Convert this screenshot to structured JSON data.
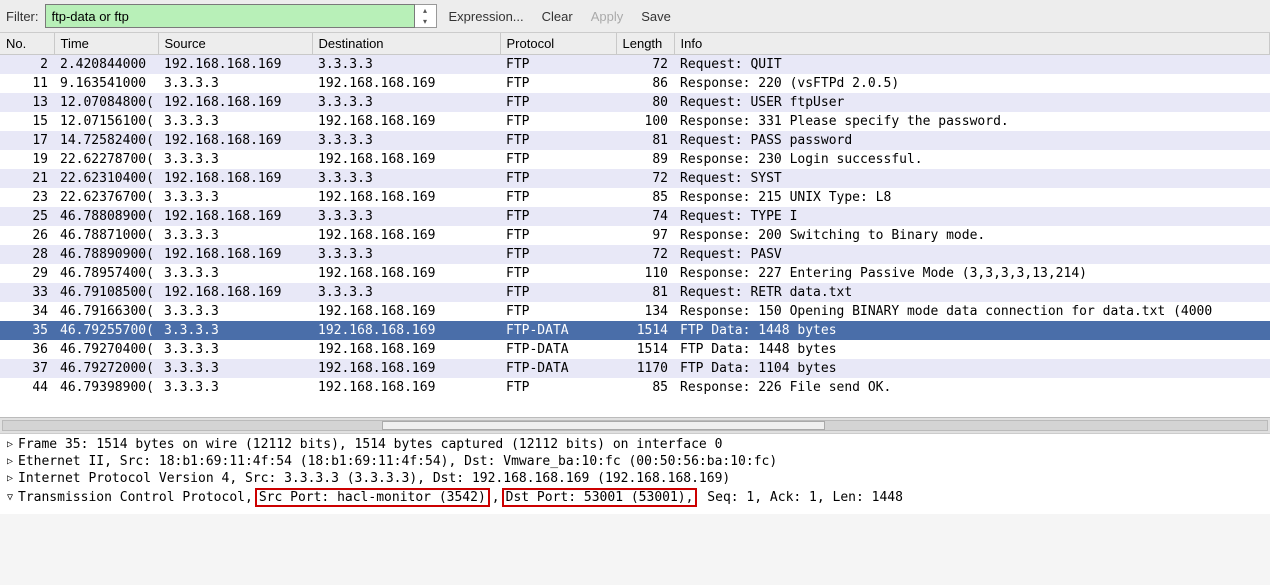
{
  "toolbar": {
    "filter_label": "Filter:",
    "filter_value": "ftp-data or ftp",
    "expression": "Expression...",
    "clear": "Clear",
    "apply": "Apply",
    "save": "Save"
  },
  "columns": {
    "no": "No.",
    "time": "Time",
    "source": "Source",
    "destination": "Destination",
    "protocol": "Protocol",
    "length": "Length",
    "info": "Info"
  },
  "colors": {
    "even_row": "#e8e8f7",
    "odd_row": "#ffffff",
    "selected_row": "#4a6ea9",
    "filter_valid_bg": "#b8f0b8",
    "highlight_border": "#c00"
  },
  "packets": [
    {
      "no": "2",
      "time": "2.420844000",
      "src": "192.168.168.169",
      "dst": "3.3.3.3",
      "proto": "FTP",
      "len": "72",
      "info": "Request: QUIT",
      "sel": false
    },
    {
      "no": "11",
      "time": "9.163541000",
      "src": "3.3.3.3",
      "dst": "192.168.168.169",
      "proto": "FTP",
      "len": "86",
      "info": "Response: 220 (vsFTPd 2.0.5)",
      "sel": false
    },
    {
      "no": "13",
      "time": "12.07084800(",
      "src": "192.168.168.169",
      "dst": "3.3.3.3",
      "proto": "FTP",
      "len": "80",
      "info": "Request: USER ftpUser",
      "sel": false
    },
    {
      "no": "15",
      "time": "12.07156100(",
      "src": "3.3.3.3",
      "dst": "192.168.168.169",
      "proto": "FTP",
      "len": "100",
      "info": "Response: 331 Please specify the password.",
      "sel": false
    },
    {
      "no": "17",
      "time": "14.72582400(",
      "src": "192.168.168.169",
      "dst": "3.3.3.3",
      "proto": "FTP",
      "len": "81",
      "info": "Request: PASS password",
      "sel": false
    },
    {
      "no": "19",
      "time": "22.62278700(",
      "src": "3.3.3.3",
      "dst": "192.168.168.169",
      "proto": "FTP",
      "len": "89",
      "info": "Response: 230 Login successful.",
      "sel": false
    },
    {
      "no": "21",
      "time": "22.62310400(",
      "src": "192.168.168.169",
      "dst": "3.3.3.3",
      "proto": "FTP",
      "len": "72",
      "info": "Request: SYST",
      "sel": false
    },
    {
      "no": "23",
      "time": "22.62376700(",
      "src": "3.3.3.3",
      "dst": "192.168.168.169",
      "proto": "FTP",
      "len": "85",
      "info": "Response: 215 UNIX Type: L8",
      "sel": false
    },
    {
      "no": "25",
      "time": "46.78808900(",
      "src": "192.168.168.169",
      "dst": "3.3.3.3",
      "proto": "FTP",
      "len": "74",
      "info": "Request: TYPE I",
      "sel": false
    },
    {
      "no": "26",
      "time": "46.78871000(",
      "src": "3.3.3.3",
      "dst": "192.168.168.169",
      "proto": "FTP",
      "len": "97",
      "info": "Response: 200 Switching to Binary mode.",
      "sel": false
    },
    {
      "no": "28",
      "time": "46.78890900(",
      "src": "192.168.168.169",
      "dst": "3.3.3.3",
      "proto": "FTP",
      "len": "72",
      "info": "Request: PASV",
      "sel": false
    },
    {
      "no": "29",
      "time": "46.78957400(",
      "src": "3.3.3.3",
      "dst": "192.168.168.169",
      "proto": "FTP",
      "len": "110",
      "info": "Response: 227 Entering Passive Mode (3,3,3,3,13,214)",
      "sel": false
    },
    {
      "no": "33",
      "time": "46.79108500(",
      "src": "192.168.168.169",
      "dst": "3.3.3.3",
      "proto": "FTP",
      "len": "81",
      "info": "Request: RETR data.txt",
      "sel": false
    },
    {
      "no": "34",
      "time": "46.79166300(",
      "src": "3.3.3.3",
      "dst": "192.168.168.169",
      "proto": "FTP",
      "len": "134",
      "info": "Response: 150 Opening BINARY mode data connection for data.txt (4000",
      "sel": false
    },
    {
      "no": "35",
      "time": "46.79255700(",
      "src": "3.3.3.3",
      "dst": "192.168.168.169",
      "proto": "FTP-DATA",
      "len": "1514",
      "info": "FTP Data: 1448 bytes",
      "sel": true
    },
    {
      "no": "36",
      "time": "46.79270400(",
      "src": "3.3.3.3",
      "dst": "192.168.168.169",
      "proto": "FTP-DATA",
      "len": "1514",
      "info": "FTP Data: 1448 bytes",
      "sel": false
    },
    {
      "no": "37",
      "time": "46.79272000(",
      "src": "3.3.3.3",
      "dst": "192.168.168.169",
      "proto": "FTP-DATA",
      "len": "1170",
      "info": "FTP Data: 1104 bytes",
      "sel": false
    },
    {
      "no": "44",
      "time": "46.79398900(",
      "src": "3.3.3.3",
      "dst": "192.168.168.169",
      "proto": "FTP",
      "len": "85",
      "info": "Response: 226 File send OK.",
      "sel": false
    }
  ],
  "details": {
    "frame": "Frame 35: 1514 bytes on wire (12112 bits), 1514 bytes captured (12112 bits) on interface 0",
    "eth": "Ethernet II, Src: 18:b1:69:11:4f:54 (18:b1:69:11:4f:54), Dst: Vmware_ba:10:fc (00:50:56:ba:10:fc)",
    "ip": "Internet Protocol Version 4, Src: 3.3.3.3 (3.3.3.3), Dst: 192.168.168.169 (192.168.168.169)",
    "tcp_prefix": "Transmission Control Protocol,",
    "tcp_src": "Src Port: hacl-monitor (3542)",
    "tcp_comma1": ",",
    "tcp_dst": "Dst Port: 53001 (53001),",
    "tcp_suffix": "Seq: 1, Ack: 1, Len: 1448"
  }
}
